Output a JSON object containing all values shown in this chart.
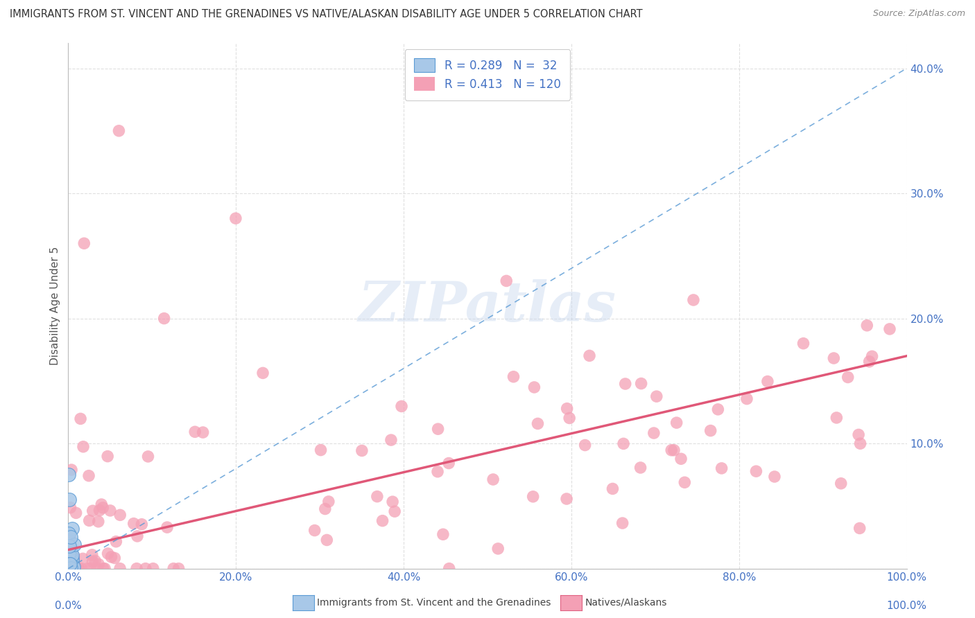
{
  "title": "IMMIGRANTS FROM ST. VINCENT AND THE GRENADINES VS NATIVE/ALASKAN DISABILITY AGE UNDER 5 CORRELATION CHART",
  "source": "Source: ZipAtlas.com",
  "ylabel": "Disability Age Under 5",
  "xlabel": "",
  "xlim": [
    0,
    100
  ],
  "ylim": [
    0,
    42
  ],
  "xtick_labels": [
    "0.0%",
    "20.0%",
    "40.0%",
    "60.0%",
    "80.0%",
    "100.0%"
  ],
  "ytick_labels": [
    "",
    "10.0%",
    "20.0%",
    "30.0%",
    "40.0%"
  ],
  "R_blue": 0.289,
  "N_blue": 32,
  "R_pink": 0.413,
  "N_pink": 120,
  "blue_color": "#a8c8e8",
  "blue_edge_color": "#5b9bd5",
  "pink_color": "#f4a0b5",
  "pink_edge_color": "#e06080",
  "trend_blue_color": "#5b9bd5",
  "trend_pink_color": "#e05878",
  "watermark": "ZIPatlas",
  "background_color": "#ffffff",
  "legend_label_blue": "R = 0.289   N =  32",
  "legend_label_pink": "R = 0.413   N = 120",
  "legend_color": "#4472c4",
  "axis_color": "#4472c4",
  "title_color": "#333333",
  "source_color": "#888888",
  "grid_color": "#d8d8d8",
  "ylabel_color": "#555555"
}
